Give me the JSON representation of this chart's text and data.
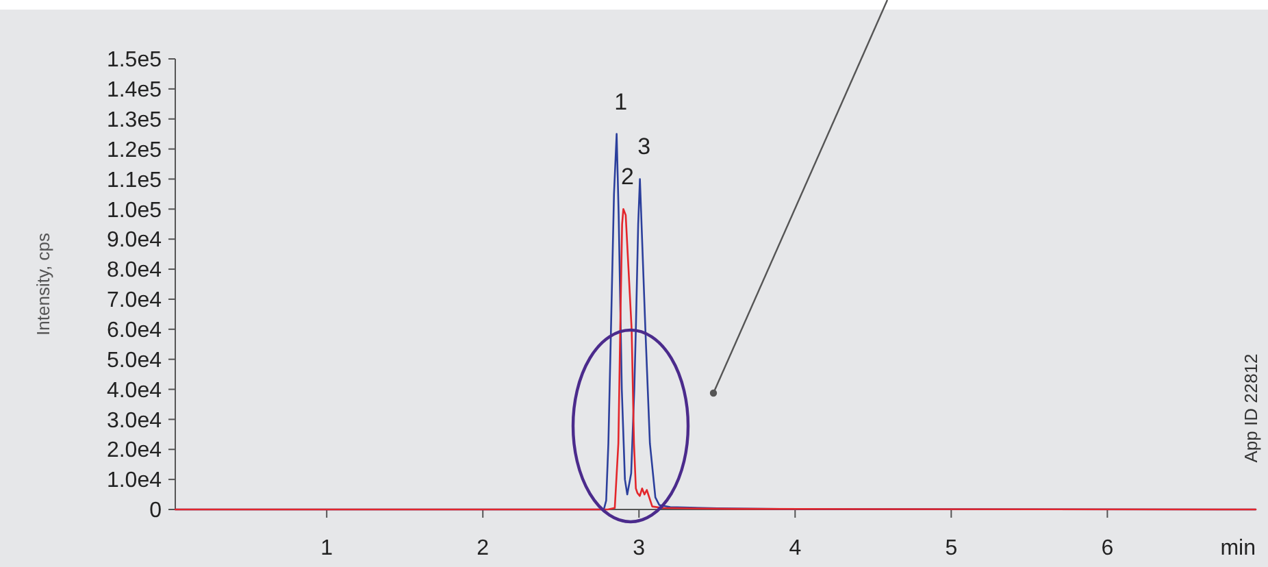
{
  "chart_data": {
    "type": "line",
    "xlabel": "min",
    "ylabel": "Intensity, cps",
    "xlim": [
      0.03,
      6.95
    ],
    "xticks": [
      1,
      2,
      3,
      4,
      5,
      6
    ],
    "ylim": [
      0,
      150000
    ],
    "yticks": [
      0,
      {
        "value": 10000,
        "label": "1.0e4"
      },
      {
        "value": 20000,
        "label": "2.0e4"
      },
      {
        "value": 30000,
        "label": "3.0e4"
      },
      {
        "value": 40000,
        "label": "4.0e4"
      },
      {
        "value": 50000,
        "label": "5.0e4"
      },
      {
        "value": 60000,
        "label": "6.0e4"
      },
      {
        "value": 70000,
        "label": "7.0e4"
      },
      {
        "value": 80000,
        "label": "8.0e4"
      },
      {
        "value": 90000,
        "label": "9.0e4"
      },
      {
        "value": 100000,
        "label": "1.0e5"
      },
      {
        "value": 110000,
        "label": "1.1e5"
      },
      {
        "value": 120000,
        "label": "1.2e5"
      },
      {
        "value": 130000,
        "label": "1.3e5"
      },
      {
        "value": 140000,
        "label": "1.4e5"
      },
      {
        "value": 150000,
        "label": "1.5e5"
      }
    ],
    "series": [
      {
        "color": "#2b3f9c",
        "x": [
          0.03,
          2.7,
          2.775,
          2.79,
          2.804,
          2.822,
          2.84,
          2.857,
          2.87,
          2.89,
          2.91,
          2.925,
          2.95,
          2.97,
          2.98,
          2.995,
          3.006,
          3.041,
          3.07,
          3.105,
          3.13,
          3.2,
          3.5,
          4.0,
          6.95
        ],
        "values": [
          0,
          0,
          0,
          3000,
          22000,
          63000,
          105000,
          125000,
          98000,
          40000,
          10000,
          5000,
          12000,
          40000,
          60000,
          95000,
          110000,
          60000,
          22000,
          4000,
          1500,
          800,
          400,
          100,
          0
        ]
      },
      {
        "color": "#e3262b",
        "x": [
          0.03,
          2.8,
          2.845,
          2.868,
          2.88,
          2.892,
          2.9,
          2.915,
          2.953,
          2.968,
          2.98,
          2.99,
          3.005,
          3.02,
          3.035,
          3.05,
          3.085,
          3.15,
          3.6,
          4.5,
          6.95
        ],
        "values": [
          0,
          0,
          500,
          22000,
          60000,
          95000,
          100000,
          98000,
          60000,
          22000,
          7000,
          5500,
          4500,
          7000,
          5000,
          6500,
          1000,
          500,
          200,
          100,
          0
        ]
      }
    ],
    "annotations": [
      {
        "text": "1",
        "x": 2.857,
        "y": 125000
      },
      {
        "text": "2",
        "x": 2.9,
        "y": 100000
      },
      {
        "text": "3",
        "x": 3.006,
        "y": 110000
      },
      "App ID 22812"
    ]
  }
}
